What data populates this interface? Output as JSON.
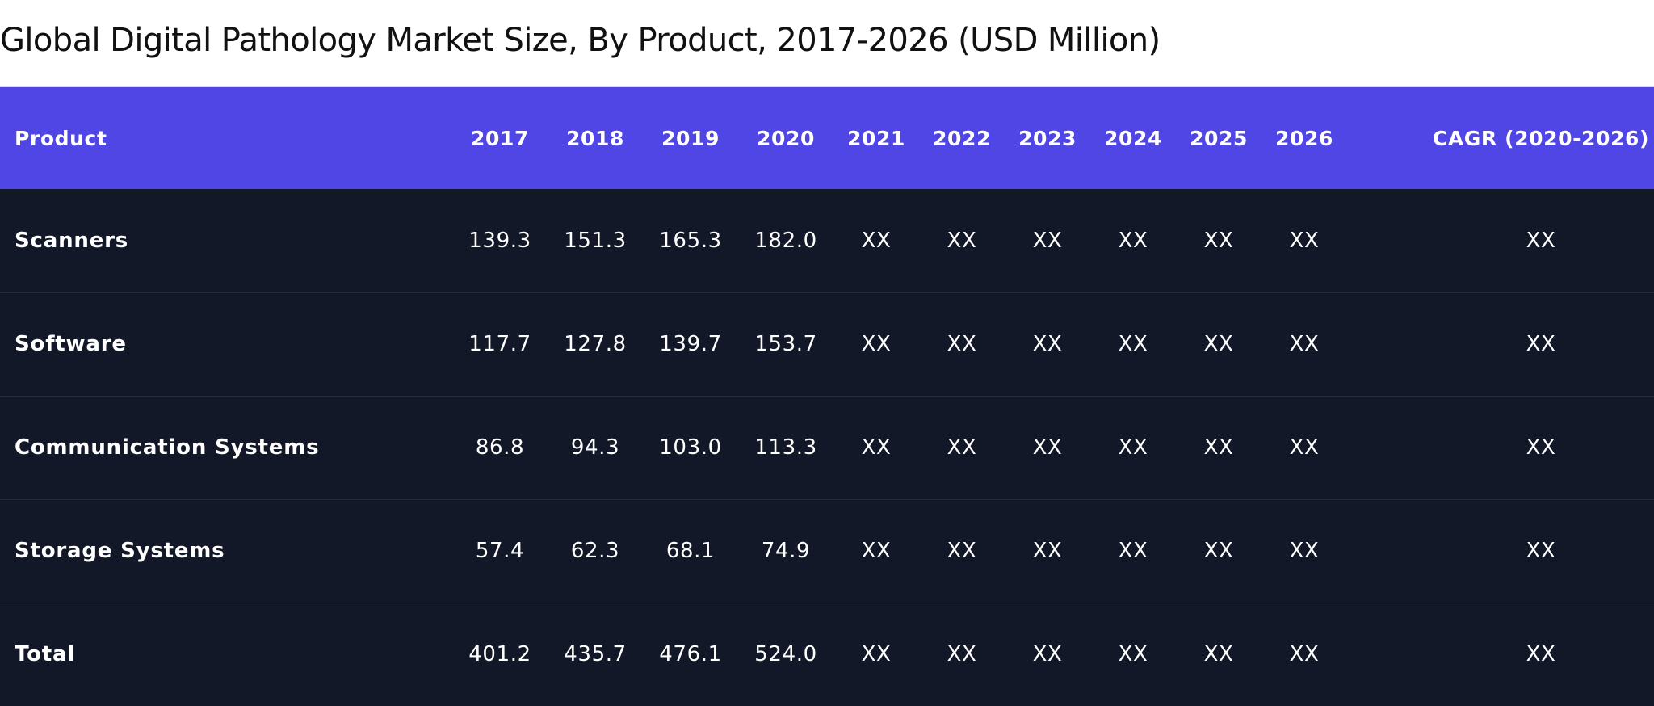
{
  "title": "Global Digital Pathology Market Size, By Product, 2017-2026 (USD Million)",
  "colors": {
    "header_bg": "#5046e5",
    "body_bg": "#121827",
    "text_on_dark": "#ffffff",
    "title_text": "#111111"
  },
  "table": {
    "headers": [
      "Product",
      "2017",
      "2018",
      "2019",
      "2020",
      "2021",
      "2022",
      "2023",
      "2024",
      "2025",
      "2026",
      "CAGR (2020-2026)"
    ],
    "rows": [
      [
        "Scanners",
        "139.3",
        "151.3",
        "165.3",
        "182.0",
        "XX",
        "XX",
        "XX",
        "XX",
        "XX",
        "XX",
        "XX"
      ],
      [
        "Software",
        "117.7",
        "127.8",
        "139.7",
        "153.7",
        "XX",
        "XX",
        "XX",
        "XX",
        "XX",
        "XX",
        "XX"
      ],
      [
        "Communication Systems",
        "86.8",
        "94.3",
        "103.0",
        "113.3",
        "XX",
        "XX",
        "XX",
        "XX",
        "XX",
        "XX",
        "XX"
      ],
      [
        "Storage Systems",
        "57.4",
        "62.3",
        "68.1",
        "74.9",
        "XX",
        "XX",
        "XX",
        "XX",
        "XX",
        "XX",
        "XX"
      ],
      [
        "Total",
        "401.2",
        "435.7",
        "476.1",
        "524.0",
        "XX",
        "XX",
        "XX",
        "XX",
        "XX",
        "XX",
        "XX"
      ]
    ]
  }
}
